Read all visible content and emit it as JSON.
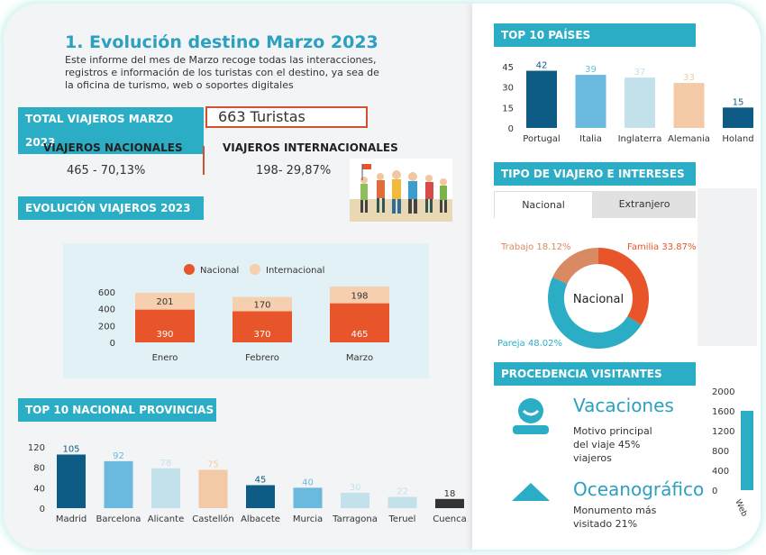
{
  "header": {
    "title": "1. Evolución destino Marzo 2023",
    "intro": [
      "Este informe del mes de Marzo recoge todas las interacciones,",
      "registros e información de los turistas con el destino, ya sea de",
      "la oficina de turismo, web o soportes digitales"
    ]
  },
  "totals": {
    "label": "TOTAL VIAJEROS MARZO 2023",
    "value": "663 Turistas",
    "nacionales_label": "VIAJEROS NACIONALES",
    "nacionales_value": "465 - 70,13%",
    "internacionales_label": "VIAJEROS INTERNACIONALES",
    "internacionales_value": "198- 29,87%"
  },
  "evolucion": {
    "label": "EVOLUCIÓN VIAJEROS 2023"
  },
  "provincias": {
    "label": "TOP 10 NACIONAL PROVINCIAS"
  },
  "paises": {
    "label": "TOP 10  PAÍSES"
  },
  "tipo": {
    "label": "TIPO DE VIAJERO E INTERESES",
    "tabs": [
      "Nacional",
      "Extranjero"
    ]
  },
  "procedencia": {
    "label": "PROCEDENCIA VISITANTES",
    "item1_title": "Vacaciones",
    "item1_text": [
      "Motivo principal",
      "del viaje 45%",
      "viajeros"
    ],
    "item2_title": "Oceanográfico",
    "item2_text": [
      "Monumento más",
      "visitado 21%"
    ]
  },
  "colors": {
    "teal": "#2badc6",
    "orange": "#e8552b",
    "peach": "#f6cfae",
    "dark_blue": "#0e5c86",
    "light_blue": "#6cb9df",
    "pale_blue": "#c3e1ea",
    "pale_orange": "#f3c9a6"
  },
  "chart_data": [
    {
      "type": "bar",
      "stacked": true,
      "categories": [
        "Enero",
        "Febrero",
        "Marzo"
      ],
      "series": [
        {
          "name": "Nacional",
          "values": [
            390,
            370,
            465
          ],
          "color": "#e8552b"
        },
        {
          "name": "Internacional",
          "values": [
            201,
            170,
            198
          ],
          "color": "#f6cfae"
        }
      ],
      "yticks": [
        "0",
        "200",
        "400",
        "600"
      ],
      "ylim": [
        0,
        600
      ],
      "legend": "top"
    },
    {
      "type": "bar",
      "categories": [
        "Madrid",
        "Barcelona",
        "Alicante",
        "Castellón",
        "Albacete",
        "Murcia",
        "Tarragona",
        "Teruel",
        "Cuenca"
      ],
      "values": [
        105,
        92,
        78,
        75,
        45,
        40,
        30,
        22,
        18
      ],
      "colors": [
        "#0e5c86",
        "#6cb9df",
        "#c3e1ea",
        "#f3c9a6",
        "#0e5c86",
        "#6cb9df",
        "#c3e1ea",
        "#c3e1ea",
        "#333333"
      ],
      "yticks": [
        "0",
        "40",
        "80",
        "120"
      ],
      "ylim": [
        0,
        120
      ]
    },
    {
      "type": "bar",
      "categories": [
        "Portugal",
        "Italia",
        "Inglaterra",
        "Alemania",
        "Holand"
      ],
      "values": [
        42,
        39,
        37,
        33,
        15
      ],
      "colors": [
        "#0e5c86",
        "#6cb9df",
        "#c3e1ea",
        "#f3c9a6",
        "#0e5c86"
      ],
      "yticks": [
        "0",
        "15",
        "30",
        "45"
      ],
      "ylim": [
        0,
        45
      ]
    },
    {
      "type": "pie",
      "center_label": "Nacional",
      "slices": [
        {
          "label": "Familia 33.87%",
          "value": 33.87,
          "color": "#e8552b"
        },
        {
          "label": "Pareja 48.02%",
          "value": 48.02,
          "color": "#2badc6"
        },
        {
          "label": "Trabajo 18.12%",
          "value": 18.12,
          "color": "#d98a63"
        }
      ]
    },
    {
      "type": "bar",
      "categories": [
        "Web"
      ],
      "values": [
        1600
      ],
      "yticks": [
        "0",
        "400",
        "800",
        "1200",
        "1600",
        "2000"
      ],
      "ylim": [
        0,
        2000
      ],
      "note": "partially cropped at right edge"
    }
  ]
}
